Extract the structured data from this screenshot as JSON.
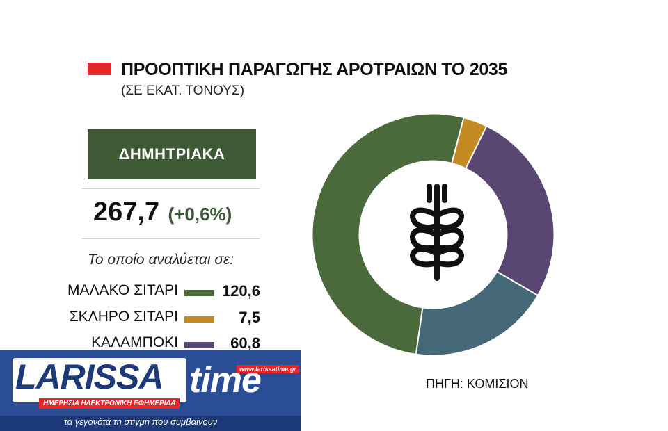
{
  "header": {
    "title": "ΠΡΟΟΠΤΙΚΗ ΠΑΡΑΓΩΓΗΣ ΑΡΟΤΡΑΙΩΝ ΤΟ 2035",
    "subtitle": "(ΣΕ ΕΚΑΤ. ΤΟΝΟΥΣ)",
    "marker_color": "#e8262a"
  },
  "category": {
    "label": "ΔΗΜΗΤΡΙΑΚΑ",
    "total": "267,7",
    "change": "(+0,6%)",
    "breakdown_label": "Το οποίο αναλύεται σε:",
    "color": "#3e5a34"
  },
  "legend": [
    {
      "name": "ΜΑΛΑΚΟ ΣΙΤΑΡΙ",
      "value": "120,6",
      "color": "#4a6a3c"
    },
    {
      "name": "ΣΚΛΗΡΟ ΣΙΤΑΡΙ",
      "value": "7,5",
      "color": "#c48a24"
    },
    {
      "name": "ΚΑΛΑΜΠΟΚΙ",
      "value": "60,8",
      "color": "#5a4672"
    }
  ],
  "chart_data": {
    "type": "pie",
    "donut": true,
    "center_icon": "wheat-icon",
    "title": "ΠΡΟΟΠΤΙΚΗ ΠΑΡΑΓΩΓΗΣ ΑΡΟΤΡΑΙΩΝ ΤΟ 2035",
    "subtitle": "(ΣΕ ΕΚΑΤ. ΤΟΝΟΥΣ)",
    "unit": "ΕΚΑΤ. ΤΟΝΟΥΣ",
    "total": 267.7,
    "slices": [
      {
        "label": "ΜΑΛΑΚΟ ΣΙΤΑΡΙ",
        "value": 120.6,
        "color": "#4a6a3c"
      },
      {
        "label": "ΣΚΛΗΡΟ ΣΙΤΑΡΙ",
        "value": 7.5,
        "color": "#c48a24"
      },
      {
        "label": "ΚΑΛΑΜΠΟΚΙ",
        "value": 60.8,
        "color": "#5a4672"
      },
      {
        "label": "",
        "value": 44.0,
        "color": "#456878"
      }
    ]
  },
  "banner": {
    "logo_main": "LARISSA",
    "logo_accent": "time",
    "url": "www.larissatime.gr",
    "strap": "ΗΜΕΡΗΣΙΑ ΗΛΕΚΤΡΟΝΙΚΗ ΕΦΗΜΕΡΙΔΑ",
    "tagline": "τα γεγονότα τη στιγμή που συμβαίνουν",
    "background_color": "#1d3a78"
  },
  "source": "ΠΗΓΗ: ΚΟΜΙΣΙΟΝ"
}
